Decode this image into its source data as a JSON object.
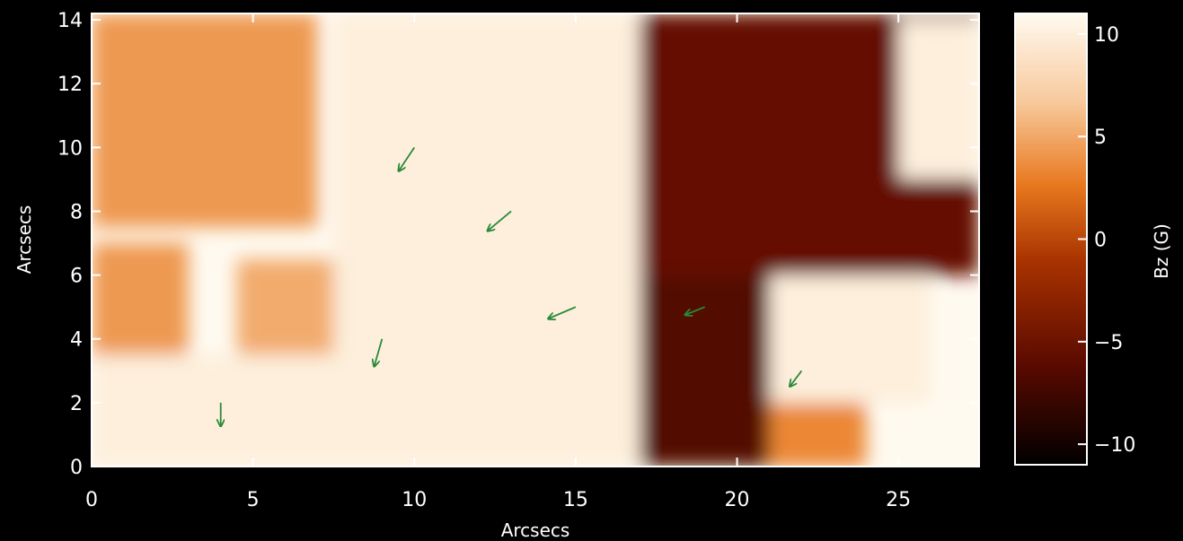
{
  "chart_data": [
    {
      "type": "heatmap",
      "description_overlay": "vector field (quiver) arrows",
      "xlabel": "Arcsecs",
      "ylabel": "Arcsecs",
      "xlim": [
        0,
        27.5
      ],
      "ylim": [
        0,
        14.2
      ],
      "xticks": [
        0,
        5,
        10,
        15,
        20,
        25
      ],
      "xtick_labels": [
        "0",
        "5",
        "10",
        "15",
        "20",
        "25"
      ],
      "yticks": [
        0,
        2,
        4,
        6,
        8,
        10,
        12,
        14
      ],
      "ytick_labels": [
        "0",
        "2",
        "4",
        "6",
        "8",
        "10",
        "12",
        "14"
      ],
      "colormap": [
        "#000000",
        "#5a0a00",
        "#a83200",
        "#e8781e",
        "#f7c89a",
        "#fffaf0"
      ],
      "vector_color": "#2a8a3a",
      "regions": [
        {
          "x0": 0,
          "x1": 7,
          "y0": 7.5,
          "y1": 14.2,
          "bz": 4
        },
        {
          "x0": 0,
          "x1": 3,
          "y0": 3.5,
          "y1": 7,
          "bz": 4
        },
        {
          "x0": 4.5,
          "x1": 7.5,
          "y0": 3.5,
          "y1": 6.5,
          "bz": 5
        },
        {
          "x0": 0,
          "x1": 7.5,
          "y0": 0,
          "y1": 3.5,
          "bz": 10
        },
        {
          "x0": 7.5,
          "x1": 17,
          "y0": 0,
          "y1": 14.2,
          "bz": 10
        },
        {
          "x0": 17,
          "x1": 27.5,
          "y0": 6,
          "y1": 14.2,
          "bz": -6
        },
        {
          "x0": 17,
          "x1": 21,
          "y0": 0,
          "y1": 6,
          "bz": -7
        },
        {
          "x0": 21,
          "x1": 26,
          "y0": 2,
          "y1": 6,
          "bz": 10
        },
        {
          "x0": 25,
          "x1": 27.5,
          "y0": 9,
          "y1": 14,
          "bz": 10
        },
        {
          "x0": 21,
          "x1": 24,
          "y0": 0,
          "y1": 2,
          "bz": 3
        }
      ],
      "vectors_sample": [
        {
          "x": 10,
          "y": 10,
          "dx": -0.8,
          "dy": -1.2
        },
        {
          "x": 13,
          "y": 8,
          "dx": -1.2,
          "dy": -1.0
        },
        {
          "x": 15,
          "y": 5,
          "dx": -1.4,
          "dy": -0.6
        },
        {
          "x": 9,
          "y": 4,
          "dx": -0.4,
          "dy": -1.4
        },
        {
          "x": 4,
          "y": 2,
          "dx": 0.0,
          "dy": -1.2
        },
        {
          "x": 19,
          "y": 5,
          "dx": -1.0,
          "dy": -0.4
        },
        {
          "x": 22,
          "y": 3,
          "dx": -0.6,
          "dy": -0.8
        }
      ]
    },
    {
      "type": "colorbar",
      "ylabel": "Bz (G)",
      "ylim": [
        -11,
        11
      ],
      "ticks": [
        10,
        5,
        0,
        -5,
        -10
      ],
      "tick_labels": [
        "10",
        "5",
        "0",
        "−5",
        "−10"
      ]
    }
  ]
}
